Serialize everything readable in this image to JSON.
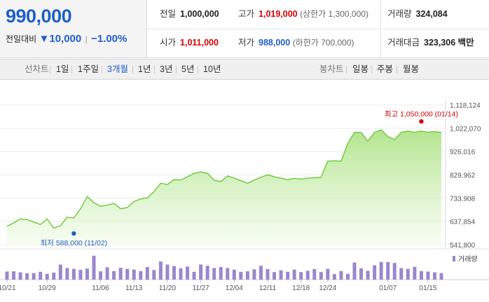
{
  "quote": {
    "price": "990,000",
    "change_label": "전일대비",
    "change_value": "▼10,000",
    "change_pct": "−1.00%",
    "prev_close_label": "전일",
    "prev_close": "1,000,000",
    "high_label": "고가",
    "high": "1,019,000",
    "upper_limit": "(상한가 1,300,000)",
    "volume_label": "거래량",
    "volume": "324,084",
    "open_label": "시가",
    "open": "1,011,000",
    "low_label": "저가",
    "low": "988,000",
    "lower_limit": "(하한가 700,000)",
    "turnover_label": "거래대금",
    "turnover": "323,306 백만"
  },
  "tabs": {
    "line_chart_label": "선차트",
    "periods": [
      "1일",
      "1주일",
      "3개월",
      "1년",
      "3년",
      "5년",
      "10년"
    ],
    "active_period": "3개월",
    "candle_label": "봉차트",
    "candles": [
      "일봉",
      "주봉",
      "월봉"
    ]
  },
  "colors": {
    "up": "#d60000",
    "down": "#1e5fc7",
    "line": "#66cc33",
    "volume": "#9b87cc"
  },
  "chart_data": {
    "type": "area",
    "x": [
      "10/21",
      "10/22",
      "10/23",
      "10/24",
      "10/25",
      "10/28",
      "10/29",
      "10/30",
      "10/31",
      "11/01",
      "11/02",
      "11/03",
      "11/04",
      "11/05",
      "11/06",
      "11/07",
      "11/08",
      "11/11",
      "11/12",
      "11/13",
      "11/14",
      "11/15",
      "11/18",
      "11/19",
      "11/20",
      "11/21",
      "11/22",
      "11/25",
      "11/26",
      "11/27",
      "11/28",
      "11/29",
      "12/02",
      "12/03",
      "12/04",
      "12/05",
      "12/06",
      "12/09",
      "12/10",
      "12/11",
      "12/12",
      "12/13",
      "12/16",
      "12/17",
      "12/18",
      "12/19",
      "12/20",
      "12/23",
      "12/24",
      "12/25",
      "12/26",
      "12/27",
      "12/30",
      "12/31",
      "01/02",
      "01/03",
      "01/06",
      "01/07",
      "01/08",
      "01/09",
      "01/10",
      "01/13",
      "01/14",
      "01/15",
      "01/16",
      "01/17"
    ],
    "values": [
      618000,
      632000,
      648000,
      645000,
      635000,
      625000,
      648000,
      610000,
      620000,
      655000,
      652000,
      690000,
      740000,
      715000,
      700000,
      705000,
      712000,
      690000,
      695000,
      720000,
      730000,
      735000,
      760000,
      795000,
      790000,
      810000,
      808000,
      822000,
      836000,
      842000,
      836000,
      808000,
      802000,
      825000,
      816000,
      806000,
      795000,
      808000,
      820000,
      830000,
      822000,
      816000,
      810000,
      815000,
      812000,
      816000,
      818000,
      820000,
      886000,
      888000,
      886000,
      960000,
      1005000,
      1004000,
      968000,
      1005000,
      1015000,
      988000,
      975000,
      1005000,
      1010000,
      1005000,
      1010000,
      1005000,
      1008000,
      1004000
    ],
    "volumes": [
      0.32,
      0.33,
      0.29,
      0.25,
      0.26,
      0.31,
      0.23,
      0.28,
      0.6,
      0.46,
      0.43,
      0.39,
      0.44,
      0.95,
      0.33,
      0.49,
      0.34,
      0.47,
      0.43,
      0.4,
      0.34,
      0.5,
      0.38,
      0.72,
      0.6,
      0.54,
      0.45,
      0.52,
      0.31,
      0.6,
      0.55,
      0.46,
      0.5,
      0.46,
      0.4,
      0.31,
      0.33,
      0.41,
      0.55,
      0.42,
      0.3,
      0.37,
      0.31,
      0.4,
      0.3,
      0.35,
      0.42,
      0.3,
      0.43,
      0.22,
      0.34,
      0.23,
      0.68,
      0.45,
      0.35,
      0.57,
      0.7,
      0.7,
      0.66,
      0.46,
      0.43,
      0.51,
      0.34,
      0.32,
      0.29,
      0.26
    ],
    "y_ticks": [
      "1,118,124",
      "1,022,070",
      "926,016",
      "829,962",
      "733,908",
      "637,854",
      "541,800"
    ],
    "ylim": [
      541800,
      1118124
    ],
    "x_ticks": [
      "10/21",
      "10/29",
      "11/06",
      "11/13",
      "11/20",
      "11/27",
      "12/04",
      "12/11",
      "12/18",
      "12/24",
      "01/07",
      "01/15"
    ],
    "max_label": "최고 1,050,000 (01/14)",
    "min_label": "최저 588,000 (11/02)",
    "max_value": 1050000,
    "min_value": 588000,
    "volume_legend": "거래량",
    "grid": true
  }
}
